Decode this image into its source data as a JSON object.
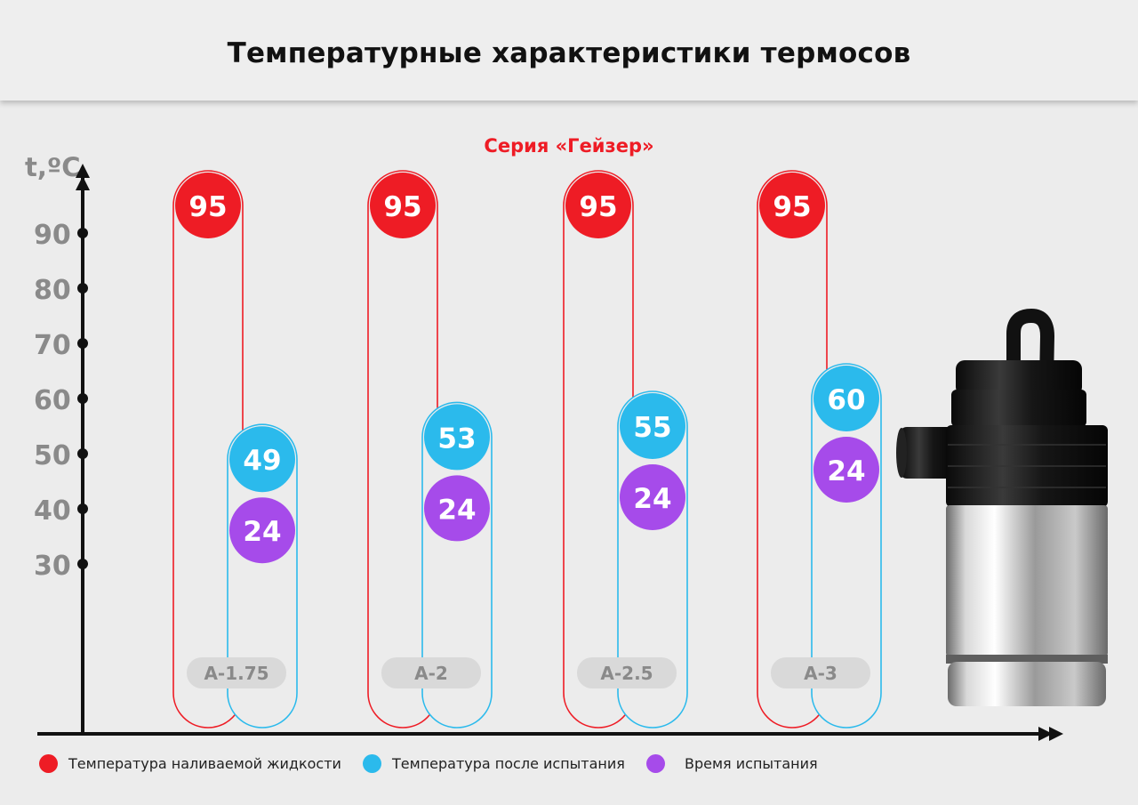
{
  "title": "Температурные характеристики термосов",
  "colors": {
    "poured": "#ee1c25",
    "after": "#2bbaec",
    "time": "#a64bea",
    "axis": "#111111",
    "tick_label": "#8a8a8a",
    "pill": "#d9d9d9"
  },
  "chart_data": {
    "type": "bar",
    "title": "Серия «Гейзер»",
    "ylabel": "t,ºC",
    "xlabel": "",
    "yticks": [
      30,
      40,
      50,
      60,
      70,
      80,
      90
    ],
    "ylim": [
      17,
      103
    ],
    "categories": [
      "А-1.75",
      "А-2",
      "А-2.5",
      "А-3"
    ],
    "series": [
      {
        "name": "Температура наливаемой жидкости",
        "values": [
          95,
          95,
          95,
          95
        ]
      },
      {
        "name": "Температура после испытания",
        "values": [
          49,
          53,
          55,
          60
        ]
      },
      {
        "name": "Время испытания",
        "values": [
          24,
          24,
          24,
          24
        ]
      }
    ],
    "legend": "bottom"
  },
  "legend": [
    {
      "label": "Температура наливаемой жидкости",
      "color": "#ee1c25"
    },
    {
      "label": "Температура после испытания",
      "color": "#2bbaec"
    },
    {
      "label": "Время испытания",
      "color": "#a64bea"
    }
  ],
  "product_image": "thermos-image"
}
